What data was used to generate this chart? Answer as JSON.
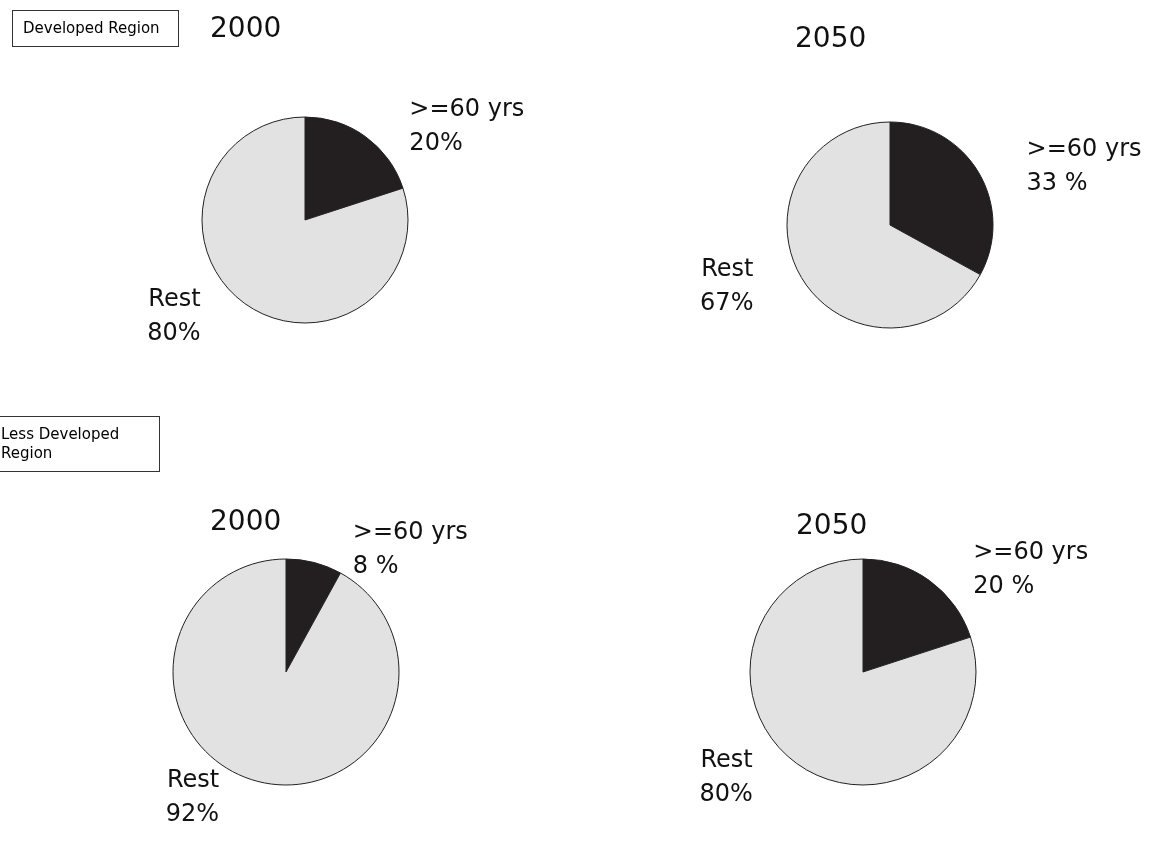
{
  "chart_data": [
    {
      "type": "pie",
      "title": "2000",
      "categories": [
        ">=60 yrs",
        "Rest"
      ],
      "values": [
        20,
        80
      ],
      "colors": [
        "#231f20",
        "#e2e2e2"
      ],
      "value_labels": [
        "20%",
        "80%"
      ],
      "annotations": [
        "Developed Region"
      ]
    },
    {
      "type": "pie",
      "title": "2050",
      "categories": [
        ">=60 yrs",
        "Rest"
      ],
      "values": [
        33,
        67
      ],
      "colors": [
        "#231f20",
        "#e2e2e2"
      ],
      "value_labels": [
        "33 %",
        "67%"
      ]
    },
    {
      "type": "pie",
      "title": "2000",
      "categories": [
        ">=60 yrs",
        "Rest"
      ],
      "values": [
        8,
        92
      ],
      "colors": [
        "#231f20",
        "#e2e2e2"
      ],
      "value_labels": [
        "8 %",
        "92%"
      ],
      "annotations": [
        "Less Developed Region"
      ]
    },
    {
      "type": "pie",
      "title": "2050",
      "categories": [
        ">=60 yrs",
        "Rest"
      ],
      "values": [
        20,
        80
      ],
      "colors": [
        "#231f20",
        "#e2e2e2"
      ],
      "value_labels": [
        "20 %",
        "80%"
      ]
    }
  ]
}
